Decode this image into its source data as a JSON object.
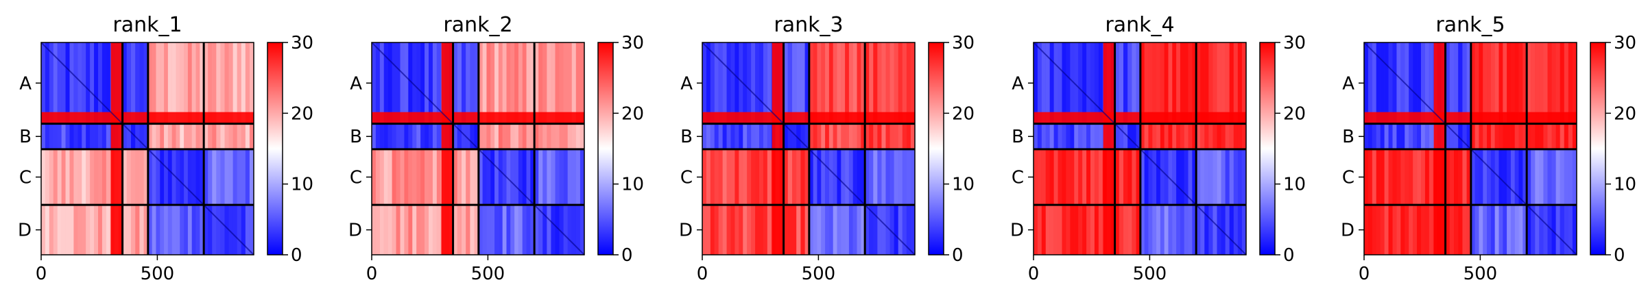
{
  "figure": {
    "panels": [
      {
        "title": "rank_1"
      },
      {
        "title": "rank_2"
      },
      {
        "title": "rank_3"
      },
      {
        "title": "rank_4"
      },
      {
        "title": "rank_5"
      }
    ]
  },
  "chart_data": [
    {
      "type": "heatmap",
      "title": "rank_1",
      "x_ticks": [
        0,
        500
      ],
      "x_range": [
        0,
        915
      ],
      "y_tick_labels": [
        "A",
        "B",
        "C",
        "D"
      ],
      "chain_boundaries": [
        0,
        350,
        460,
        700,
        915
      ],
      "colorbar": {
        "ticks": [
          0,
          10,
          20,
          30
        ],
        "range": [
          0,
          30
        ],
        "colormap": "bwr"
      },
      "grid": false
    },
    {
      "type": "heatmap",
      "title": "rank_2",
      "x_ticks": [
        0,
        500
      ],
      "x_range": [
        0,
        915
      ],
      "y_tick_labels": [
        "A",
        "B",
        "C",
        "D"
      ],
      "chain_boundaries": [
        0,
        350,
        460,
        700,
        915
      ],
      "colorbar": {
        "ticks": [
          0,
          10,
          20,
          30
        ],
        "range": [
          0,
          30
        ],
        "colormap": "bwr"
      },
      "grid": false
    },
    {
      "type": "heatmap",
      "title": "rank_3",
      "x_ticks": [
        0,
        500
      ],
      "x_range": [
        0,
        915
      ],
      "y_tick_labels": [
        "A",
        "B",
        "C",
        "D"
      ],
      "chain_boundaries": [
        0,
        350,
        460,
        700,
        915
      ],
      "colorbar": {
        "ticks": [
          0,
          10,
          20,
          30
        ],
        "range": [
          0,
          30
        ],
        "colormap": "bwr"
      },
      "grid": false
    },
    {
      "type": "heatmap",
      "title": "rank_4",
      "x_ticks": [
        0,
        500
      ],
      "x_range": [
        0,
        915
      ],
      "y_tick_labels": [
        "A",
        "B",
        "C",
        "D"
      ],
      "chain_boundaries": [
        0,
        350,
        460,
        700,
        915
      ],
      "colorbar": {
        "ticks": [
          0,
          10,
          20,
          30
        ],
        "range": [
          0,
          30
        ],
        "colormap": "bwr"
      },
      "grid": false
    },
    {
      "type": "heatmap",
      "title": "rank_5",
      "x_ticks": [
        0,
        500
      ],
      "x_range": [
        0,
        915
      ],
      "y_tick_labels": [
        "A",
        "B",
        "C",
        "D"
      ],
      "chain_boundaries": [
        0,
        350,
        460,
        700,
        915
      ],
      "colorbar": {
        "ticks": [
          0,
          10,
          20,
          30
        ],
        "range": [
          0,
          30
        ],
        "colormap": "bwr"
      },
      "grid": false
    }
  ]
}
